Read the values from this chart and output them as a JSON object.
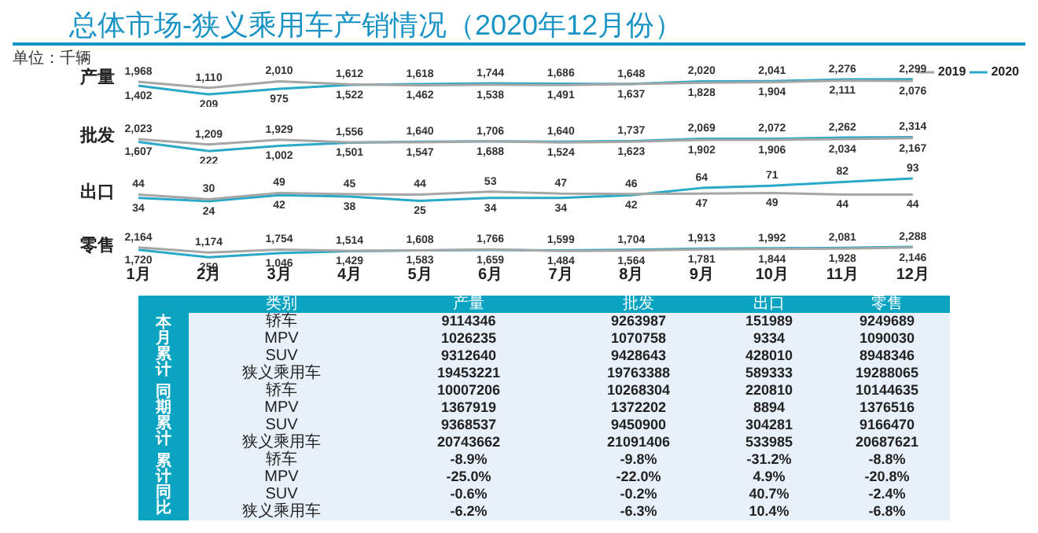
{
  "chart_data": [
    {
      "type": "line",
      "title": "总体市场-狭义乘用车产销情况（2020年12月份）",
      "annotations": [
        "单位：千辆"
      ],
      "ylabel": "产量",
      "legend": "top right",
      "tick_labels": false,
      "categories": [
        null,
        null,
        null,
        null,
        null,
        null,
        null,
        null,
        null,
        null,
        null,
        null
      ],
      "series": [
        {
          "name": "2019",
          "color": "#a6a6a6",
          "values": [
            1968,
            1110,
            2010,
            1612,
            1462,
            1538,
            1491,
            1637,
            1828,
            1904,
            2111,
            2076
          ],
          "value_labels": [
            "1,968",
            "1,110",
            "2,010",
            "1,612",
            "1,462",
            "1,538",
            "1,491",
            "1,637",
            "1,828",
            "1,904",
            "2,111",
            "2,076"
          ]
        },
        {
          "name": "2020",
          "color": "#29a9c8",
          "values": [
            1402,
            209,
            975,
            1522,
            1618,
            1744,
            1686,
            1648,
            2020,
            2041,
            2276,
            2299
          ],
          "value_labels": [
            "1,402",
            "209",
            "975",
            "1,522",
            "1,618",
            "1,744",
            "1,686",
            "1,648",
            "2,020",
            "2,041",
            "2,276",
            "2,299"
          ]
        }
      ]
    },
    {
      "type": "line",
      "ylabel": "批发",
      "tick_labels": false,
      "categories": [
        null,
        null,
        null,
        null,
        null,
        null,
        null,
        null,
        null,
        null,
        null,
        null
      ],
      "series": [
        {
          "color": "#a6a6a6",
          "values": [
            2023,
            1209,
            1929,
            1556,
            1547,
            1688,
            1524,
            1623,
            1902,
            1906,
            2034,
            2167
          ],
          "value_labels": [
            "2,023",
            "1,209",
            "1,929",
            "1,556",
            "1,547",
            "1,688",
            "1,524",
            "1,623",
            "1,902",
            "1,906",
            "2,034",
            "2,167"
          ]
        },
        {
          "color": "#29a9c8",
          "values": [
            1607,
            222,
            1002,
            1501,
            1640,
            1706,
            1640,
            1737,
            2069,
            2072,
            2262,
            2314
          ],
          "value_labels": [
            "1,607",
            "222",
            "1,002",
            "1,501",
            "1,640",
            "1,706",
            "1,640",
            "1,737",
            "2,069",
            "2,072",
            "2,262",
            "2,314"
          ]
        }
      ]
    },
    {
      "type": "line",
      "ylabel": "出口",
      "tick_labels": false,
      "categories": [
        null,
        null,
        null,
        null,
        null,
        null,
        null,
        null,
        null,
        null,
        null,
        null
      ],
      "series": [
        {
          "color": "#a6a6a6",
          "values": [
            44,
            30,
            49,
            45,
            44,
            53,
            47,
            46,
            47,
            49,
            44,
            44
          ],
          "value_labels": [
            "44",
            "30",
            "49",
            "45",
            "44",
            "53",
            "47",
            "46",
            "47",
            "49",
            "44",
            "44"
          ]
        },
        {
          "color": "#29a9c8",
          "values": [
            34,
            24,
            42,
            38,
            25,
            34,
            34,
            42,
            64,
            71,
            82,
            93
          ],
          "value_labels": [
            "34",
            "24",
            "42",
            "38",
            "25",
            "34",
            "34",
            "42",
            "64",
            "71",
            "82",
            "93"
          ]
        }
      ]
    },
    {
      "type": "line",
      "ylabel": "零售",
      "tick_labels": "x",
      "categories": [
        "1月",
        "2月",
        "3月",
        "4月",
        "5月",
        "6月",
        "7月",
        "8月",
        "9月",
        "10月",
        "11月",
        "12月"
      ],
      "series": [
        {
          "color": "#a6a6a6",
          "values": [
            2164,
            1174,
            1754,
            1514,
            1583,
            1766,
            1484,
            1564,
            1781,
            1844,
            1928,
            2146
          ],
          "value_labels": [
            "2,164",
            "1,174",
            "1,754",
            "1,514",
            "1,583",
            "1,766",
            "1,484",
            "1,564",
            "1,781",
            "1,844",
            "1,928",
            "2,146"
          ]
        },
        {
          "color": "#29a9c8",
          "values": [
            1720,
            250,
            1046,
            1429,
            1608,
            1659,
            1599,
            1704,
            1913,
            1992,
            2081,
            2288
          ],
          "value_labels": [
            "1,720",
            "250",
            "1,046",
            "1,429",
            "1,608",
            "1,659",
            "1,599",
            "1,704",
            "1,913",
            "1,992",
            "2,081",
            "2,288"
          ]
        }
      ]
    },
    {
      "type": "other",
      "annotations": [
        "类别",
        "本月累计",
        "同期累计",
        "累计同比"
      ],
      "categories": [
        "产量",
        "批发",
        "出口",
        "零售"
      ],
      "y_categories": [
        "轿车",
        "MPV",
        "SUV",
        "狭义乘用车",
        "轿车",
        "MPV",
        "SUV",
        "狭义乘用车",
        "轿车",
        "MPV",
        "SUV",
        "狭义乘用车"
      ],
      "cell_labels": [
        [
          "9114346",
          "9263987",
          "151989",
          "9249689"
        ],
        [
          "1026235",
          "1070758",
          "9334",
          "1090030"
        ],
        [
          "9312640",
          "9428643",
          "428010",
          "8948346"
        ],
        [
          "19453221",
          "19763388",
          "589333",
          "19288065"
        ],
        [
          "10007206",
          "10268304",
          "220810",
          "10144635"
        ],
        [
          "1367919",
          "1372202",
          "8894",
          "1376516"
        ],
        [
          "9368537",
          "9450900",
          "304281",
          "9166470"
        ],
        [
          "20743662",
          "21091406",
          "533985",
          "20687621"
        ],
        [
          "-8.9%",
          "-9.8%",
          "-31.2%",
          "-8.8%"
        ],
        [
          "-25.0%",
          "-22.0%",
          "4.9%",
          "-20.8%"
        ],
        [
          "-0.6%",
          "-0.2%",
          "40.7%",
          "-2.4%"
        ],
        [
          "-6.2%",
          "-6.3%",
          "10.4%",
          "-6.8%"
        ]
      ]
    }
  ]
}
